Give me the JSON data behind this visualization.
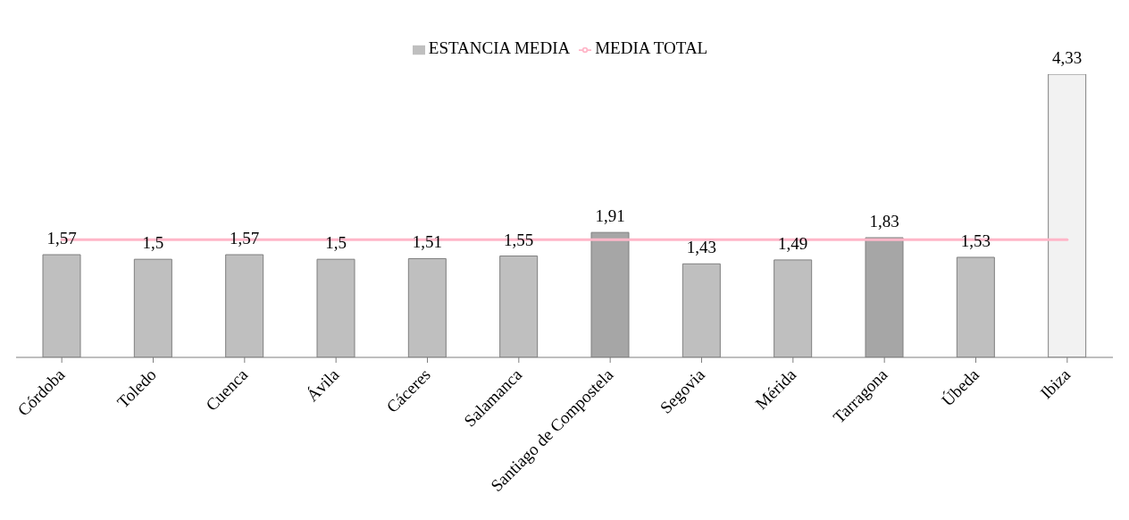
{
  "chart_data": {
    "type": "bar",
    "categories": [
      "Córdoba",
      "Toledo",
      "Cuenca",
      "Ávila",
      "Cáceres",
      "Salamanca",
      "Santiago de Compostela",
      "Segovia",
      "Mérida",
      "Tarragona",
      "Úbeda",
      "Ibiza"
    ],
    "series": [
      {
        "name": "ESTANCIA MEDIA",
        "colors": [
          "#bfbfbf",
          "#bfbfbf",
          "#bfbfbf",
          "#bfbfbf",
          "#bfbfbf",
          "#bfbfbf",
          "#a6a6a6",
          "#bfbfbf",
          "#bfbfbf",
          "#a6a6a6",
          "#bfbfbf",
          "#f2f2f2"
        ],
        "values": [
          1.57,
          1.5,
          1.57,
          1.5,
          1.51,
          1.55,
          1.91,
          1.43,
          1.49,
          1.83,
          1.53,
          4.33
        ],
        "value_labels": [
          "1,57",
          "1,5",
          "1,57",
          "1,5",
          "1,51",
          "1,55",
          "1,91",
          "1,43",
          "1,49",
          "1,83",
          "1,53",
          "4,33"
        ]
      },
      {
        "name": "MEDIA TOTAL",
        "type": "line",
        "color": "#ffb6c8",
        "values": [
          1.8,
          1.8,
          1.8,
          1.8,
          1.8,
          1.8,
          1.8,
          1.8,
          1.8,
          1.8,
          1.8,
          1.8
        ]
      }
    ],
    "tick_labels": "x",
    "legend": "top"
  }
}
